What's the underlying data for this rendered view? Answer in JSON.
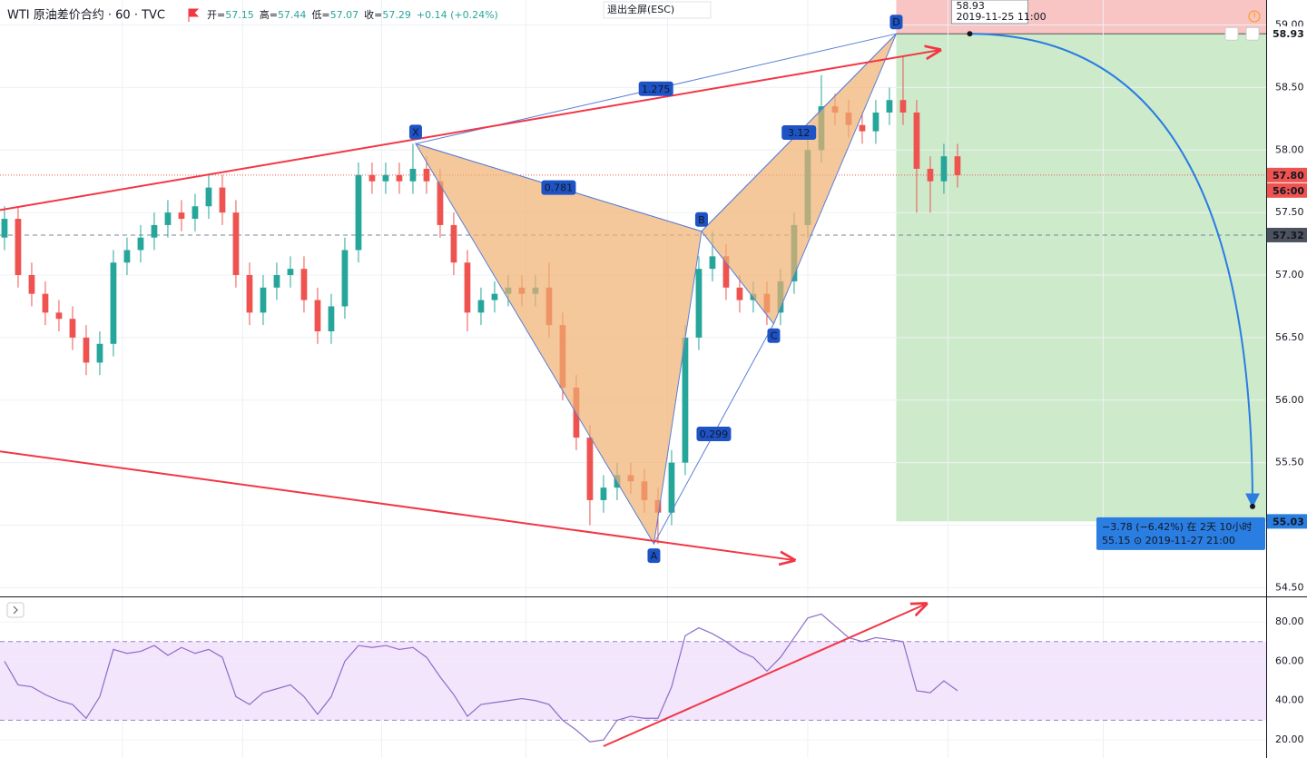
{
  "header": {
    "symbol": "WTI 原油差价合约 · 60 · TVC",
    "quote": [
      {
        "k": "开=",
        "v": "57.15"
      },
      {
        "k": "高=",
        "v": "57.44"
      },
      {
        "k": "低=",
        "v": "57.07"
      },
      {
        "k": "收=",
        "v": "57.29"
      },
      {
        "v": "+0.14 (+0.24%)"
      }
    ],
    "exit_button": "退出全屏(ESC)"
  },
  "chart_data": [
    {
      "type": "candlestick",
      "up_color": "#26a69a",
      "down_color": "#ef5350",
      "xlim": [
        -0.33,
        92.67
      ],
      "ylim": [
        54.43,
        59.2
      ],
      "xticks": [
        8.67,
        17.5,
        27.7,
        38.3,
        48.7,
        59,
        69.3,
        80.7
      ],
      "yticks": [
        {
          "value": 54.5,
          "label": "54.50"
        },
        {
          "value": 55,
          "label": "55.00"
        },
        {
          "value": 55.5,
          "label": "55.50"
        },
        {
          "value": 56,
          "label": "56.00"
        },
        {
          "value": 56.5,
          "label": "56.50"
        },
        {
          "value": 57,
          "label": "57.00"
        },
        {
          "value": 57.5,
          "label": "57.50"
        },
        {
          "value": 58,
          "label": "58.00"
        },
        {
          "value": 58.5,
          "label": "58.50"
        },
        {
          "value": 59,
          "label": "59.00"
        }
      ],
      "grid": true,
      "open": [
        57.3,
        57.45,
        57.0,
        56.85,
        56.7,
        56.65,
        56.5,
        56.3,
        56.45,
        57.1,
        57.2,
        57.3,
        57.4,
        57.5,
        57.45,
        57.55,
        57.7,
        57.5,
        57.0,
        56.7,
        56.9,
        57.0,
        57.05,
        56.8,
        56.55,
        56.75,
        57.2,
        57.8,
        57.75,
        57.8,
        57.75,
        57.85,
        57.75,
        57.4,
        57.1,
        56.7,
        56.8,
        56.85,
        56.9,
        56.85,
        56.9,
        56.6,
        56.1,
        55.7,
        55.2,
        55.3,
        55.4,
        55.35,
        55.2,
        55.1,
        55.5,
        56.5,
        57.05,
        57.15,
        56.9,
        56.8,
        56.85,
        56.7,
        56.95,
        57.4,
        58.0,
        58.35,
        58.3,
        58.2,
        58.15,
        58.3,
        58.4,
        58.3,
        57.85,
        57.75,
        57.95
      ],
      "high": [
        57.55,
        57.55,
        57.1,
        56.95,
        56.8,
        56.75,
        56.6,
        56.55,
        57.2,
        57.3,
        57.4,
        57.5,
        57.6,
        57.6,
        57.65,
        57.8,
        57.8,
        57.6,
        57.1,
        57.0,
        57.1,
        57.15,
        57.15,
        56.9,
        56.85,
        57.3,
        57.9,
        57.9,
        57.9,
        57.9,
        58.05,
        57.95,
        57.85,
        57.5,
        57.2,
        56.9,
        56.95,
        57.0,
        57.0,
        57.0,
        57.1,
        56.7,
        56.2,
        55.8,
        55.4,
        55.5,
        55.5,
        55.45,
        55.3,
        55.6,
        56.6,
        57.15,
        57.35,
        57.25,
        57.0,
        56.95,
        56.95,
        57.05,
        57.5,
        58.1,
        58.6,
        58.45,
        58.4,
        58.3,
        58.4,
        58.5,
        58.75,
        58.4,
        57.95,
        58.05,
        58.05
      ],
      "low": [
        57.2,
        56.9,
        56.75,
        56.6,
        56.55,
        56.4,
        56.2,
        56.2,
        56.35,
        57.0,
        57.1,
        57.2,
        57.3,
        57.35,
        57.35,
        57.45,
        57.4,
        56.9,
        56.6,
        56.6,
        56.8,
        56.9,
        56.7,
        56.45,
        56.45,
        56.65,
        57.1,
        57.65,
        57.65,
        57.65,
        57.65,
        57.65,
        57.3,
        57.0,
        56.55,
        56.6,
        56.7,
        56.75,
        56.75,
        56.75,
        56.5,
        56.0,
        55.6,
        55.0,
        55.1,
        55.2,
        55.25,
        55.1,
        54.85,
        55.0,
        55.4,
        56.4,
        56.95,
        56.8,
        56.7,
        56.7,
        56.6,
        56.6,
        56.85,
        57.3,
        57.9,
        58.2,
        58.1,
        58.05,
        58.05,
        58.2,
        58.2,
        57.5,
        57.5,
        57.65,
        57.7
      ],
      "close": [
        57.45,
        57.0,
        56.85,
        56.7,
        56.65,
        56.5,
        56.3,
        56.45,
        57.1,
        57.2,
        57.3,
        57.4,
        57.5,
        57.45,
        57.55,
        57.7,
        57.5,
        57.0,
        56.7,
        56.9,
        57.0,
        57.05,
        56.8,
        56.55,
        56.75,
        57.2,
        57.8,
        57.75,
        57.8,
        57.75,
        57.85,
        57.75,
        57.4,
        57.1,
        56.7,
        56.8,
        56.85,
        56.9,
        56.85,
        56.9,
        56.6,
        56.1,
        55.7,
        55.2,
        55.3,
        55.4,
        55.35,
        55.2,
        55.1,
        55.5,
        56.5,
        57.05,
        57.15,
        56.9,
        56.8,
        56.85,
        56.7,
        56.95,
        57.4,
        58.0,
        58.35,
        58.3,
        58.2,
        58.15,
        58.3,
        58.4,
        58.3,
        57.85,
        57.75,
        57.95,
        57.8
      ],
      "pattern": {
        "color": "#5a7fd6",
        "fill": "#f0b070",
        "points": [
          {
            "label": "X",
            "x": 30.2,
            "y": 58.05
          },
          {
            "label": "A",
            "x": 47.7,
            "y": 54.85
          },
          {
            "label": "B",
            "x": 51.2,
            "y": 57.35
          },
          {
            "label": "C",
            "x": 56.5,
            "y": 56.61
          },
          {
            "label": "D",
            "x": 65.5,
            "y": 58.93
          }
        ],
        "ratios": [
          "1.275",
          "0.781",
          "0.299",
          "3.12"
        ]
      },
      "trend_lines": [
        {
          "color": "#f23645",
          "points": [
            [
              -0.33,
              57.52
            ],
            [
              68.7,
              58.8
            ]
          ]
        },
        {
          "color": "#f23645",
          "points": [
            [
              -0.33,
              55.59
            ],
            [
              58,
              54.72
            ]
          ]
        }
      ],
      "projection": {
        "x": 65.5,
        "stop": 59.2,
        "entry": {
          "value": 58.93,
          "label": "58.93"
        },
        "target": {
          "value": 55.03,
          "label": "55.03"
        },
        "stop_color": "#f8c4c4",
        "target_color": "#cdebcb"
      },
      "forecast": {
        "color": "#2a7de1",
        "start": [
          70.9,
          58.93
        ],
        "end": [
          91.67,
          55.15
        ],
        "label": "−3.78 (−6.42%) 在 2天 10小时",
        "sublabel": "55.15 ⊙ 2019-11-27 21:00"
      },
      "tooltip": {
        "price": "58.93",
        "time": "2019-11-25 11:00"
      },
      "last_price": {
        "value": 57.8,
        "label": "57.80",
        "color": "#ef5350"
      },
      "countdown": "56:00",
      "crosshair": {
        "value": 57.32,
        "label": "57.32"
      }
    },
    {
      "type": "line",
      "color": "#8e6cc8",
      "xlim": [
        -0.33,
        92.67
      ],
      "ylim": [
        10.8,
        92.5
      ],
      "yticks": [
        {
          "value": 20,
          "label": "20.00"
        },
        {
          "value": 40,
          "label": "40.00"
        },
        {
          "value": 60,
          "label": "60.00"
        },
        {
          "value": 80,
          "label": "80.00"
        }
      ],
      "band": [
        30,
        70
      ],
      "band_color": "#f3e5fc",
      "values": [
        60,
        48,
        47,
        43,
        40,
        38,
        31,
        42,
        66,
        64,
        65,
        68,
        63,
        67,
        64,
        66,
        62,
        42,
        38,
        44,
        46,
        48,
        42,
        33,
        42,
        60,
        68,
        67,
        68,
        66,
        67,
        62,
        52,
        43,
        32,
        38,
        39,
        40,
        41,
        40,
        38,
        30,
        25,
        19,
        20,
        30,
        32,
        31,
        31,
        47,
        73,
        77,
        74,
        70,
        65,
        62,
        55,
        62,
        72,
        82,
        84,
        78,
        72,
        70,
        72,
        71,
        70,
        45,
        44,
        50,
        45
      ],
      "trend_lines": [
        {
          "color": "#f23645",
          "points": [
            [
              44,
              16.8
            ],
            [
              67.7,
              89.2
            ]
          ]
        }
      ]
    }
  ]
}
